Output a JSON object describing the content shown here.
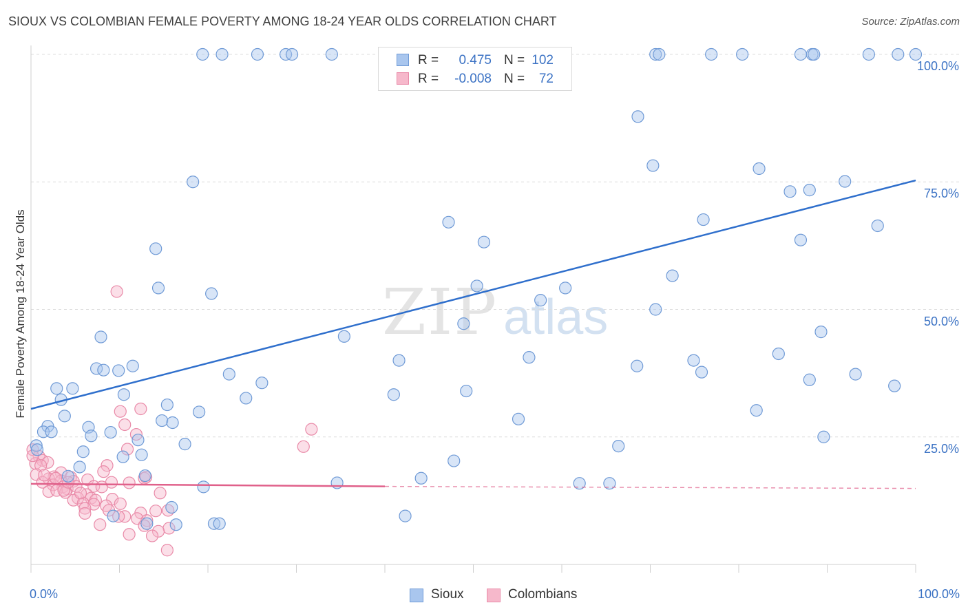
{
  "title": "SIOUX VS COLOMBIAN FEMALE POVERTY AMONG 18-24 YEAR OLDS CORRELATION CHART",
  "source": "Source: ZipAtlas.com",
  "watermark": {
    "zip": "ZIP",
    "atlas": "atlas"
  },
  "colors": {
    "sioux_fill": "#a9c6ee",
    "sioux_stroke": "#6f9ad6",
    "sioux_line": "#2f6fcc",
    "colombian_fill": "#f6b8cb",
    "colombian_stroke": "#e98aa8",
    "colombian_line": "#e0608a",
    "grid": "#dcdcdc",
    "axis_label": "#3b72c4"
  },
  "stats": [
    {
      "series": "sioux",
      "r_label": "R =",
      "r_value": "0.475",
      "n_label": "N =",
      "n_value": "102"
    },
    {
      "series": "colombians",
      "r_label": "R =",
      "r_value": "-0.008",
      "n_label": "N =",
      "n_value": "72"
    }
  ],
  "chart_data": {
    "type": "scatter",
    "title": "SIOUX VS COLOMBIAN FEMALE POVERTY AMONG 18-24 YEAR OLDS CORRELATION CHART",
    "xlabel": "",
    "ylabel": "Female Poverty Among 18-24 Year Olds",
    "xlim": [
      0,
      100
    ],
    "ylim": [
      0,
      100
    ],
    "x_tick_labels": [
      "0.0%",
      "100.0%"
    ],
    "y_tick_labels": [
      "25.0%",
      "50.0%",
      "75.0%",
      "100.0%"
    ],
    "y_ticks": [
      25,
      50,
      75,
      100
    ],
    "grid": true,
    "legend_position": "bottom-center",
    "series": [
      {
        "name": "Sioux",
        "trend": {
          "x": [
            0,
            100
          ],
          "y": [
            30.5,
            75.3
          ]
        },
        "points": [
          [
            19.4,
            100
          ],
          [
            21.6,
            100
          ],
          [
            25.6,
            100
          ],
          [
            28.8,
            100
          ],
          [
            29.5,
            100
          ],
          [
            34.0,
            100
          ],
          [
            46.7,
            100
          ],
          [
            55.8,
            100
          ],
          [
            70.6,
            100
          ],
          [
            71.0,
            100
          ],
          [
            76.9,
            100
          ],
          [
            80.4,
            100
          ],
          [
            87.0,
            100
          ],
          [
            88.3,
            100
          ],
          [
            88.5,
            100
          ],
          [
            94.7,
            100
          ],
          [
            98.0,
            100
          ],
          [
            100,
            100
          ],
          [
            68.6,
            87.8
          ],
          [
            70.3,
            78.2
          ],
          [
            82.3,
            77.6
          ],
          [
            18.3,
            75.0
          ],
          [
            85.8,
            73.1
          ],
          [
            88.0,
            73.4
          ],
          [
            92.0,
            75.1
          ],
          [
            47.2,
            67.1
          ],
          [
            76.0,
            67.6
          ],
          [
            95.7,
            66.4
          ],
          [
            51.2,
            63.2
          ],
          [
            87.0,
            63.6
          ],
          [
            14.1,
            61.9
          ],
          [
            72.5,
            56.6
          ],
          [
            14.4,
            54.2
          ],
          [
            20.4,
            53.1
          ],
          [
            50.4,
            54.6
          ],
          [
            60.4,
            54.2
          ],
          [
            57.6,
            51.8
          ],
          [
            70.6,
            50.0
          ],
          [
            48.9,
            47.2
          ],
          [
            7.9,
            44.6
          ],
          [
            35.4,
            44.7
          ],
          [
            89.3,
            45.6
          ],
          [
            84.5,
            41.3
          ],
          [
            41.6,
            40.0
          ],
          [
            56.3,
            40.6
          ],
          [
            74.9,
            40.0
          ],
          [
            68.5,
            38.9
          ],
          [
            75.8,
            37.7
          ],
          [
            7.4,
            38.4
          ],
          [
            8.2,
            38.1
          ],
          [
            9.9,
            38.0
          ],
          [
            11.5,
            38.9
          ],
          [
            22.4,
            37.3
          ],
          [
            26.1,
            35.6
          ],
          [
            88.0,
            36.2
          ],
          [
            93.2,
            37.3
          ],
          [
            2.9,
            34.5
          ],
          [
            4.7,
            34.5
          ],
          [
            10.5,
            33.3
          ],
          [
            41.0,
            33.3
          ],
          [
            49.2,
            34.0
          ],
          [
            97.6,
            35.0
          ],
          [
            3.4,
            32.3
          ],
          [
            24.3,
            32.6
          ],
          [
            15.4,
            31.3
          ],
          [
            19.0,
            29.9
          ],
          [
            3.8,
            29.1
          ],
          [
            82.0,
            30.2
          ],
          [
            14.8,
            28.2
          ],
          [
            16.0,
            27.8
          ],
          [
            55.1,
            28.5
          ],
          [
            1.9,
            27.1
          ],
          [
            6.5,
            26.9
          ],
          [
            1.4,
            26.0
          ],
          [
            2.3,
            26.0
          ],
          [
            6.8,
            25.2
          ],
          [
            9.0,
            25.9
          ],
          [
            12.1,
            24.4
          ],
          [
            17.4,
            23.6
          ],
          [
            89.6,
            25.0
          ],
          [
            66.4,
            23.2
          ],
          [
            0.6,
            23.3
          ],
          [
            0.7,
            22.5
          ],
          [
            5.9,
            22.1
          ],
          [
            10.4,
            21.1
          ],
          [
            12.5,
            21.5
          ],
          [
            47.8,
            20.3
          ],
          [
            5.5,
            19.1
          ],
          [
            4.2,
            17.3
          ],
          [
            12.9,
            17.4
          ],
          [
            44.1,
            16.9
          ],
          [
            34.6,
            16.0
          ],
          [
            19.5,
            15.2
          ],
          [
            62.0,
            15.9
          ],
          [
            65.4,
            15.9
          ],
          [
            9.3,
            9.5
          ],
          [
            15.9,
            11.2
          ],
          [
            42.3,
            9.5
          ],
          [
            20.7,
            8.0
          ],
          [
            13.1,
            8.0
          ],
          [
            21.3,
            8.0
          ],
          [
            16.4,
            7.8
          ]
        ]
      },
      {
        "name": "Colombians",
        "trend": {
          "x": [
            0,
            40
          ],
          "y": [
            15.8,
            15.3
          ],
          "dashed_to": [
            100,
            14.9
          ]
        },
        "points": [
          [
            9.7,
            53.5
          ],
          [
            31.7,
            26.5
          ],
          [
            30.8,
            23.1
          ],
          [
            12.4,
            30.5
          ],
          [
            10.1,
            30.0
          ],
          [
            10.6,
            27.4
          ],
          [
            11.9,
            25.5
          ],
          [
            10.9,
            22.6
          ],
          [
            0.2,
            22.5
          ],
          [
            0.9,
            21.2
          ],
          [
            1.3,
            20.4
          ],
          [
            1.9,
            20.0
          ],
          [
            0.5,
            19.8
          ],
          [
            1.1,
            19.4
          ],
          [
            8.6,
            19.4
          ],
          [
            8.2,
            18.2
          ],
          [
            3.4,
            18.0
          ],
          [
            0.6,
            17.6
          ],
          [
            2.6,
            17.2
          ],
          [
            4.5,
            17.1
          ],
          [
            2.0,
            16.8
          ],
          [
            3.4,
            16.4
          ],
          [
            6.4,
            16.6
          ],
          [
            12.8,
            16.9
          ],
          [
            1.3,
            16.1
          ],
          [
            4.8,
            16.3
          ],
          [
            7.1,
            15.3
          ],
          [
            9.1,
            16.1
          ],
          [
            11.1,
            16.0
          ],
          [
            13.0,
            17.1
          ],
          [
            2.5,
            15.6
          ],
          [
            3.6,
            15.2
          ],
          [
            4.1,
            14.8
          ],
          [
            5.1,
            15.3
          ],
          [
            2.0,
            14.3
          ],
          [
            2.9,
            14.5
          ],
          [
            3.9,
            14.1
          ],
          [
            6.3,
            13.7
          ],
          [
            14.6,
            14.0
          ],
          [
            5.3,
            13.0
          ],
          [
            4.8,
            12.6
          ],
          [
            6.8,
            13.0
          ],
          [
            7.3,
            12.6
          ],
          [
            9.2,
            12.8
          ],
          [
            5.9,
            12.0
          ],
          [
            7.1,
            11.8
          ],
          [
            8.5,
            11.5
          ],
          [
            10.1,
            11.9
          ],
          [
            6.1,
            11.0
          ],
          [
            8.8,
            10.6
          ],
          [
            12.4,
            10.1
          ],
          [
            14.1,
            10.5
          ],
          [
            15.5,
            10.6
          ],
          [
            6.1,
            10.0
          ],
          [
            10.6,
            9.4
          ],
          [
            12.0,
            9.0
          ],
          [
            13.1,
            8.6
          ],
          [
            7.8,
            7.8
          ],
          [
            12.8,
            7.6
          ],
          [
            15.6,
            7.1
          ],
          [
            14.4,
            6.5
          ],
          [
            11.1,
            5.9
          ],
          [
            13.7,
            5.6
          ],
          [
            15.4,
            2.8
          ],
          [
            3.7,
            14.5
          ],
          [
            2.8,
            16.9
          ],
          [
            0.2,
            21.3
          ],
          [
            9.9,
            9.4
          ],
          [
            4.2,
            16.1
          ],
          [
            5.6,
            14.0
          ],
          [
            8.0,
            15.2
          ],
          [
            1.5,
            17.5
          ]
        ]
      }
    ]
  },
  "legend": [
    {
      "series": "sioux",
      "label": "Sioux"
    },
    {
      "series": "colombians",
      "label": "Colombians"
    }
  ]
}
